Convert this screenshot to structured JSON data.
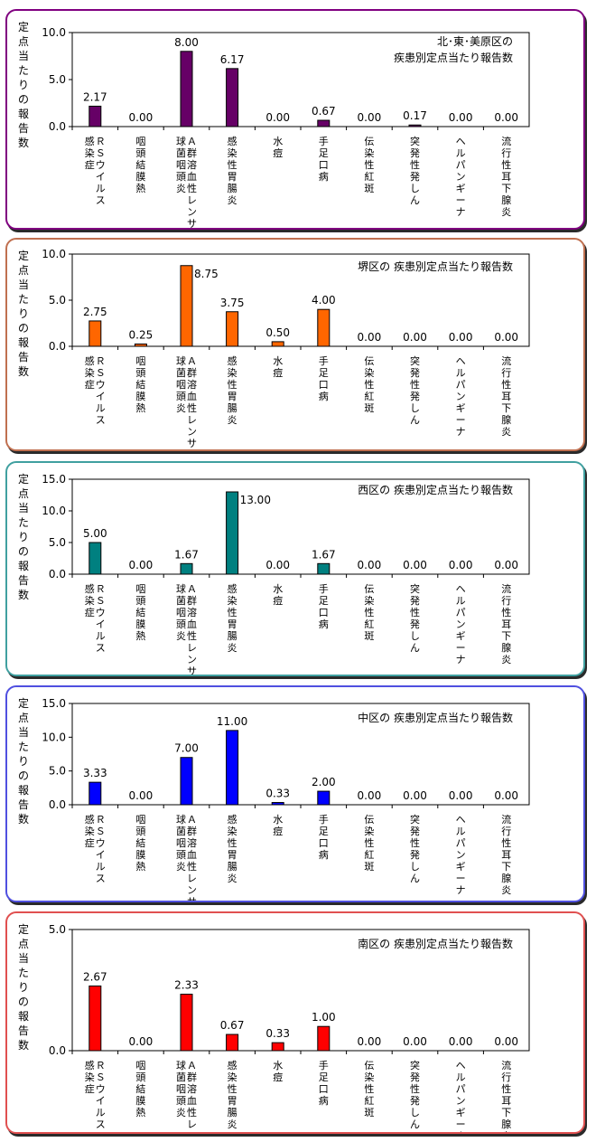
{
  "y_axis_label": [
    "定",
    "点",
    "当",
    "た",
    "り",
    "の",
    "報",
    "告",
    "数"
  ],
  "chart_data": [
    {
      "type": "bar",
      "title": [
        "北･東･美原区の",
        "疾患別定点当たり報告数"
      ],
      "categories": [
        [
          "Ｒ",
          "Ｓ",
          "ウ",
          "イ",
          "ル",
          "ス",
          "",
          "感",
          "染",
          "症"
        ],
        [
          "咽",
          "頭",
          "結",
          "膜",
          "熱"
        ],
        [
          "Ａ",
          "群",
          "溶",
          "血",
          "性",
          "レ",
          "ン",
          "サ",
          "",
          "球",
          "菌",
          "咽",
          "頭",
          "炎"
        ],
        [
          "感",
          "染",
          "性",
          "胃",
          "腸",
          "炎"
        ],
        [
          "水",
          "痘"
        ],
        [
          "手",
          "足",
          "口",
          "病"
        ],
        [
          "伝",
          "染",
          "性",
          "紅",
          "斑"
        ],
        [
          "突",
          "発",
          "性",
          "発",
          "し",
          "ん"
        ],
        [
          "ヘ",
          "ル",
          "パ",
          "ン",
          "ギ",
          "ー",
          "ナ"
        ],
        [
          "流",
          "行",
          "性",
          "耳",
          "下",
          "腺",
          "炎"
        ]
      ],
      "values": [
        2.17,
        0.0,
        8.0,
        6.17,
        0.0,
        0.67,
        0.0,
        0.17,
        0.0,
        0.0
      ],
      "value_labels": [
        "2.17",
        "0.00",
        "8.00",
        "6.17",
        "0.00",
        "0.67",
        "0.00",
        "0.17",
        "0.00",
        "0.00"
      ],
      "ylim": [
        0,
        10
      ],
      "yticks": [
        "0.0",
        "5.0",
        "10.0"
      ],
      "ytick_values": [
        0,
        5,
        10
      ],
      "bar_color": "#660066",
      "border_color": "#800080"
    },
    {
      "type": "bar",
      "title": [
        "堺区の 疾患別定点当たり報告数"
      ],
      "categories": [
        [
          "Ｒ",
          "Ｓ",
          "ウ",
          "イ",
          "ル",
          "ス",
          "",
          "感",
          "染",
          "症"
        ],
        [
          "咽",
          "頭",
          "結",
          "膜",
          "熱"
        ],
        [
          "Ａ",
          "群",
          "溶",
          "血",
          "性",
          "レ",
          "ン",
          "サ",
          "",
          "球",
          "菌",
          "咽",
          "頭",
          "炎"
        ],
        [
          "感",
          "染",
          "性",
          "胃",
          "腸",
          "炎"
        ],
        [
          "水",
          "痘"
        ],
        [
          "手",
          "足",
          "口",
          "病"
        ],
        [
          "伝",
          "染",
          "性",
          "紅",
          "斑"
        ],
        [
          "突",
          "発",
          "性",
          "発",
          "し",
          "ん"
        ],
        [
          "ヘ",
          "ル",
          "パ",
          "ン",
          "ギ",
          "ー",
          "ナ"
        ],
        [
          "流",
          "行",
          "性",
          "耳",
          "下",
          "腺",
          "炎"
        ]
      ],
      "values": [
        2.75,
        0.25,
        8.75,
        3.75,
        0.5,
        4.0,
        0.0,
        0.0,
        0.0,
        0.0
      ],
      "value_labels": [
        "2.75",
        "0.25",
        "8.75",
        "3.75",
        "0.50",
        "4.00",
        "0.00",
        "0.00",
        "0.00",
        "0.00"
      ],
      "ylim": [
        0,
        10
      ],
      "yticks": [
        "0.0",
        "5.0",
        "10.0"
      ],
      "ytick_values": [
        0,
        5,
        10
      ],
      "bar_color": "#ff6600",
      "border_color": "#c07050"
    },
    {
      "type": "bar",
      "title": [
        "西区の 疾患別定点当たり報告数"
      ],
      "categories": [
        [
          "Ｒ",
          "Ｓ",
          "ウ",
          "イ",
          "ル",
          "ス",
          "",
          "感",
          "染",
          "症"
        ],
        [
          "咽",
          "頭",
          "結",
          "膜",
          "熱"
        ],
        [
          "Ａ",
          "群",
          "溶",
          "血",
          "性",
          "レ",
          "ン",
          "サ",
          "",
          "球",
          "菌",
          "咽",
          "頭",
          "炎"
        ],
        [
          "感",
          "染",
          "性",
          "胃",
          "腸",
          "炎"
        ],
        [
          "水",
          "痘"
        ],
        [
          "手",
          "足",
          "口",
          "病"
        ],
        [
          "伝",
          "染",
          "性",
          "紅",
          "斑"
        ],
        [
          "突",
          "発",
          "性",
          "発",
          "し",
          "ん"
        ],
        [
          "ヘ",
          "ル",
          "パ",
          "ン",
          "ギ",
          "ー",
          "ナ"
        ],
        [
          "流",
          "行",
          "性",
          "耳",
          "下",
          "腺",
          "炎"
        ]
      ],
      "values": [
        5.0,
        0.0,
        1.67,
        13.0,
        0.0,
        1.67,
        0.0,
        0.0,
        0.0,
        0.0
      ],
      "value_labels": [
        "5.00",
        "0.00",
        "1.67",
        "13.00",
        "0.00",
        "1.67",
        "0.00",
        "0.00",
        "0.00",
        "0.00"
      ],
      "ylim": [
        0,
        15
      ],
      "yticks": [
        "0.0",
        "5.0",
        "10.0",
        "15.0"
      ],
      "ytick_values": [
        0,
        5,
        10,
        15
      ],
      "bar_color": "#008080",
      "border_color": "#40a0a0"
    },
    {
      "type": "bar",
      "title": [
        "中区の 疾患別定点当たり報告数"
      ],
      "categories": [
        [
          "Ｒ",
          "Ｓ",
          "ウ",
          "イ",
          "ル",
          "ス",
          "",
          "感",
          "染",
          "症"
        ],
        [
          "咽",
          "頭",
          "結",
          "膜",
          "熱"
        ],
        [
          "Ａ",
          "群",
          "溶",
          "血",
          "性",
          "レ",
          "ン",
          "サ",
          "",
          "球",
          "菌",
          "咽",
          "頭",
          "炎"
        ],
        [
          "感",
          "染",
          "性",
          "胃",
          "腸",
          "炎"
        ],
        [
          "水",
          "痘"
        ],
        [
          "手",
          "足",
          "口",
          "病"
        ],
        [
          "伝",
          "染",
          "性",
          "紅",
          "斑"
        ],
        [
          "突",
          "発",
          "性",
          "発",
          "し",
          "ん"
        ],
        [
          "ヘ",
          "ル",
          "パ",
          "ン",
          "ギ",
          "ー",
          "ナ"
        ],
        [
          "流",
          "行",
          "性",
          "耳",
          "下",
          "腺",
          "炎"
        ]
      ],
      "values": [
        3.33,
        0.0,
        7.0,
        11.0,
        0.33,
        2.0,
        0.0,
        0.0,
        0.0,
        0.0
      ],
      "value_labels": [
        "3.33",
        "0.00",
        "7.00",
        "11.00",
        "0.33",
        "2.00",
        "0.00",
        "0.00",
        "0.00",
        "0.00"
      ],
      "ylim": [
        0,
        15
      ],
      "yticks": [
        "0.0",
        "5.0",
        "10.0",
        "15.0"
      ],
      "ytick_values": [
        0,
        5,
        10,
        15
      ],
      "bar_color": "#0000ff",
      "border_color": "#5050e0"
    },
    {
      "type": "bar",
      "title": [
        "南区の 疾患別定点当たり報告数"
      ],
      "categories": [
        [
          "Ｒ",
          "Ｓ",
          "ウ",
          "イ",
          "ル",
          "ス",
          "",
          "感",
          "染",
          "症"
        ],
        [
          "咽",
          "頭",
          "結",
          "膜",
          "熱"
        ],
        [
          "Ａ",
          "群",
          "溶",
          "血",
          "性",
          "レ",
          "ン",
          "サ",
          "",
          "球",
          "菌",
          "咽",
          "頭",
          "炎"
        ],
        [
          "感",
          "染",
          "性",
          "胃",
          "腸",
          "炎"
        ],
        [
          "水",
          "痘"
        ],
        [
          "手",
          "足",
          "口",
          "病"
        ],
        [
          "伝",
          "染",
          "性",
          "紅",
          "斑"
        ],
        [
          "突",
          "発",
          "性",
          "発",
          "し",
          "ん"
        ],
        [
          "ヘ",
          "ル",
          "パ",
          "ン",
          "ギ",
          "ー",
          "ナ"
        ],
        [
          "流",
          "行",
          "性",
          "耳",
          "下",
          "腺",
          "炎"
        ]
      ],
      "values": [
        2.67,
        0.0,
        2.33,
        0.67,
        0.33,
        1.0,
        0.0,
        0.0,
        0.0,
        0.0
      ],
      "value_labels": [
        "2.67",
        "0.00",
        "2.33",
        "0.67",
        "0.33",
        "1.00",
        "0.00",
        "0.00",
        "0.00",
        "0.00"
      ],
      "ylim": [
        0,
        5
      ],
      "yticks": [
        "0.0",
        "5.0"
      ],
      "ytick_values": [
        0,
        5
      ],
      "bar_color": "#ff0000",
      "border_color": "#e05050"
    }
  ]
}
